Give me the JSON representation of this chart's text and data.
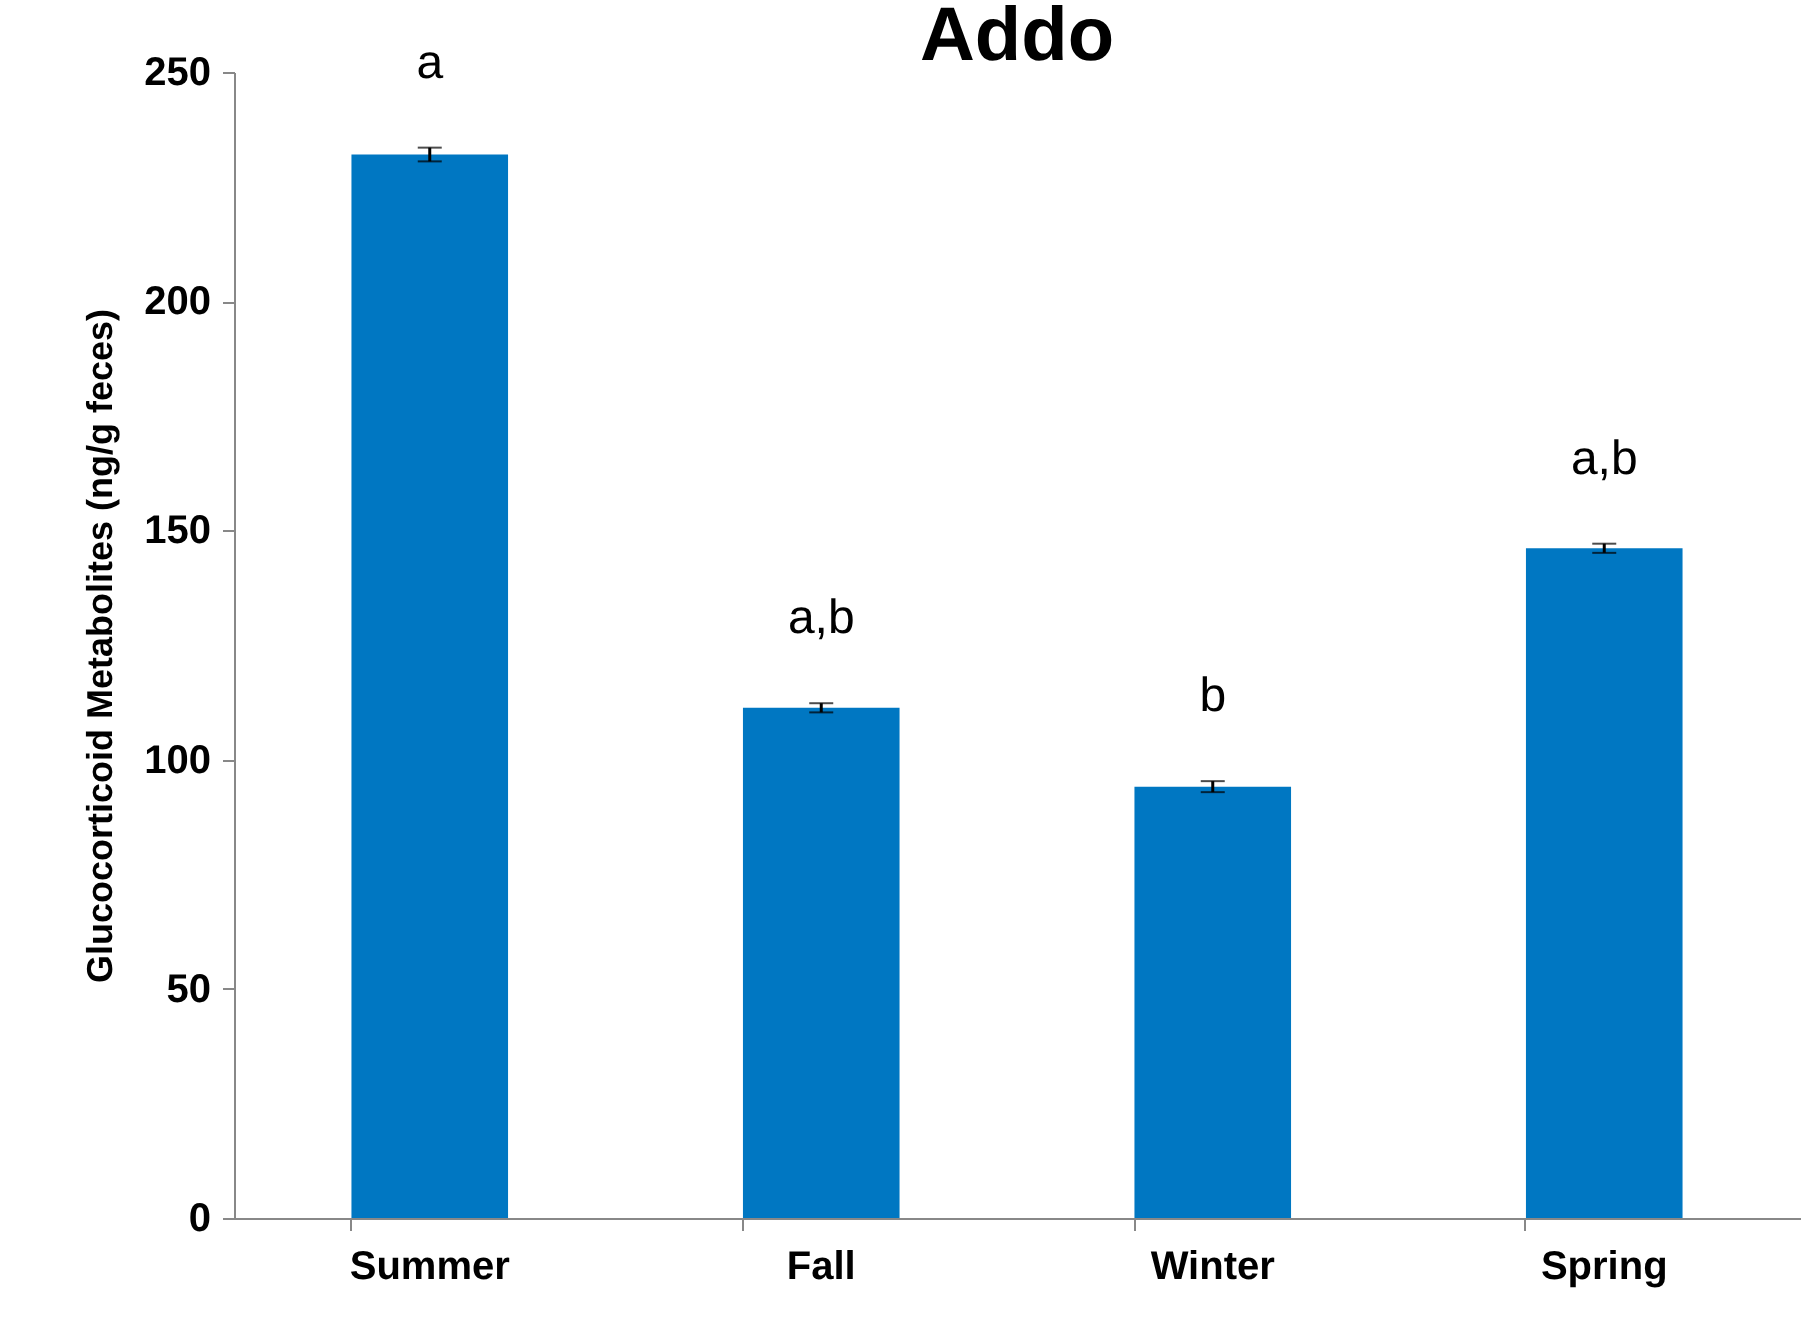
{
  "chart_data": {
    "type": "bar",
    "title": "Addo",
    "ylabel": "Glucocorticoid Metabolites (ng/g feces)",
    "categories": [
      "Summer",
      "Fall",
      "Winter",
      "Spring"
    ],
    "values": [
      232,
      111.3,
      94.1,
      146.1
    ],
    "errors": [
      1.5,
      1,
      1.2,
      1
    ],
    "color": "#0077c2",
    "ylim": [
      0,
      250
    ],
    "yticks": [
      0,
      50,
      100,
      150,
      200,
      250
    ],
    "annotations": [
      "a",
      "a,b",
      "b",
      "a,b"
    ]
  }
}
